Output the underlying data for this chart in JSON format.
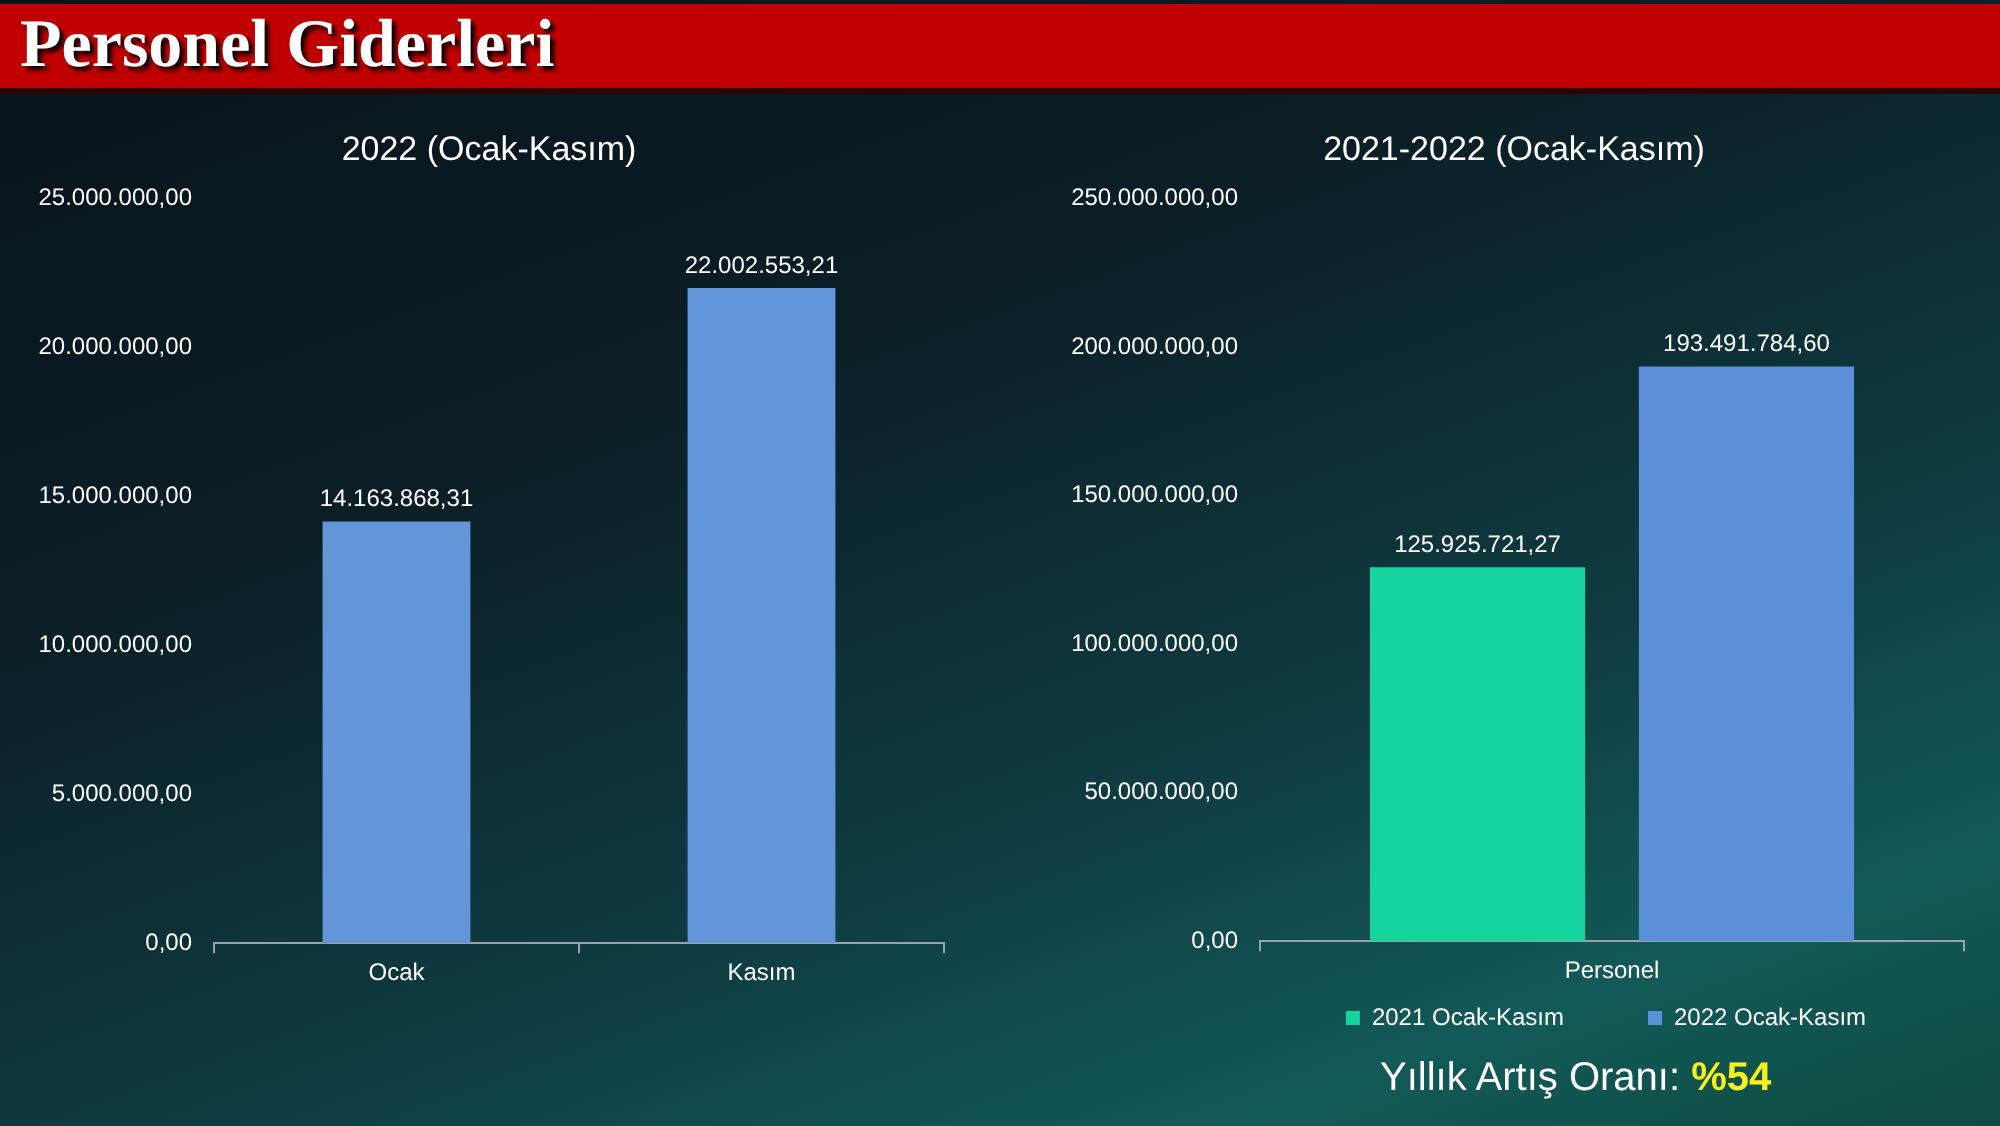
{
  "chart_data": [
    {
      "type": "bar",
      "title": "2022 (Ocak-Kasım)",
      "categories": [
        "Ocak",
        "Kasım"
      ],
      "values": [
        14163868.31,
        22002553.21
      ],
      "color": "#6396d8",
      "value_labels": [
        "14.163.868,31",
        "22.002.553,21"
      ],
      "ylim": [
        0,
        25000000
      ],
      "yticks": [
        {
          "value": 0,
          "label": "0,00"
        },
        {
          "value": 5000000,
          "label": "5.000.000,00"
        },
        {
          "value": 10000000,
          "label": "10.000.000,00"
        },
        {
          "value": 15000000,
          "label": "15.000.000,00"
        },
        {
          "value": 20000000,
          "label": "20.000.000,00"
        },
        {
          "value": 25000000,
          "label": "25.000.000,00"
        }
      ],
      "annotations": [
        "Personel Giderleri"
      ]
    },
    {
      "type": "bar",
      "title": "2021-2022 (Ocak-Kasım)",
      "categories": [
        "Personel"
      ],
      "series": [
        {
          "name": "2021 Ocak-Kasım",
          "color": "#14d39c",
          "values": [
            125925721.27
          ],
          "value_labels": [
            "125.925.721,27"
          ]
        },
        {
          "name": "2022 Ocak-Kasım",
          "color": "#5b8fd8",
          "values": [
            193491784.6
          ],
          "value_labels": [
            "193.491.784,60"
          ]
        }
      ],
      "ylim": [
        0,
        250000000
      ],
      "yticks": [
        {
          "value": 0,
          "label": "0,00"
        },
        {
          "value": 50000000,
          "label": "50.000.000,00"
        },
        {
          "value": 100000000,
          "label": "100.000.000,00"
        },
        {
          "value": 150000000,
          "label": "150.000.000,00"
        },
        {
          "value": 200000000,
          "label": "200.000.000,00"
        },
        {
          "value": 250000000,
          "label": "250.000.000,00"
        }
      ],
      "legend": "bottom",
      "annotations": [
        "Yıllık Artış Oranı: %54"
      ]
    }
  ]
}
